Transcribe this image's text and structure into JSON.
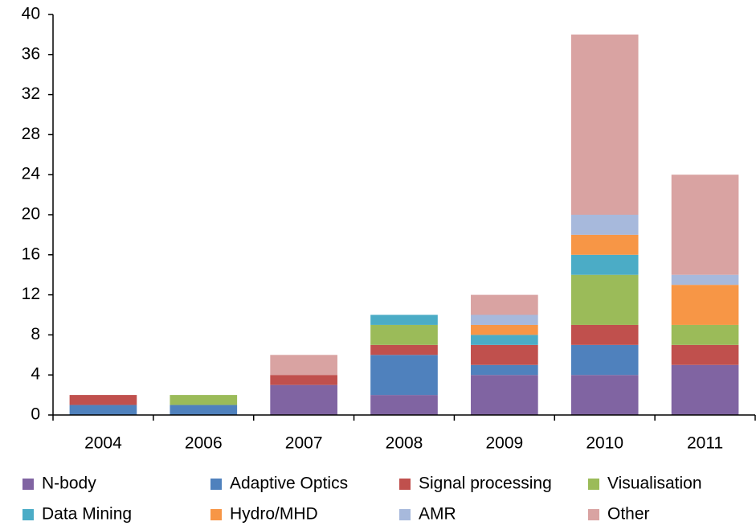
{
  "chart_data": {
    "type": "stacked_bar",
    "categories": [
      "2004",
      "2006",
      "2007",
      "2008",
      "2009",
      "2010",
      "2011"
    ],
    "series": [
      {
        "name": "N-body",
        "color": "#8064a2",
        "values": [
          0,
          0,
          3,
          2,
          4,
          4,
          5
        ]
      },
      {
        "name": "Adaptive Optics",
        "color": "#4f81bd",
        "values": [
          1,
          1,
          0,
          4,
          1,
          3,
          0
        ]
      },
      {
        "name": "Signal processing",
        "color": "#c0504d",
        "values": [
          1,
          0,
          1,
          1,
          2,
          2,
          2
        ]
      },
      {
        "name": "Visualisation",
        "color": "#9bbb59",
        "values": [
          0,
          1,
          0,
          2,
          0,
          5,
          2
        ]
      },
      {
        "name": "Data Mining",
        "color": "#4bacc6",
        "values": [
          0,
          0,
          0,
          1,
          1,
          2,
          0
        ]
      },
      {
        "name": "Hydro/MHD",
        "color": "#f79646",
        "values": [
          0,
          0,
          0,
          0,
          1,
          2,
          4
        ]
      },
      {
        "name": "AMR",
        "color": "#a7b9dc",
        "values": [
          0,
          0,
          0,
          0,
          1,
          2,
          1
        ]
      },
      {
        "name": "Other",
        "color": "#d9a3a2",
        "values": [
          0,
          0,
          2,
          0,
          2,
          18,
          10
        ]
      }
    ],
    "ylim": [
      0,
      40
    ],
    "yticks": [
      0,
      4,
      8,
      12,
      16,
      20,
      24,
      28,
      32,
      36,
      40
    ],
    "grid": false
  }
}
